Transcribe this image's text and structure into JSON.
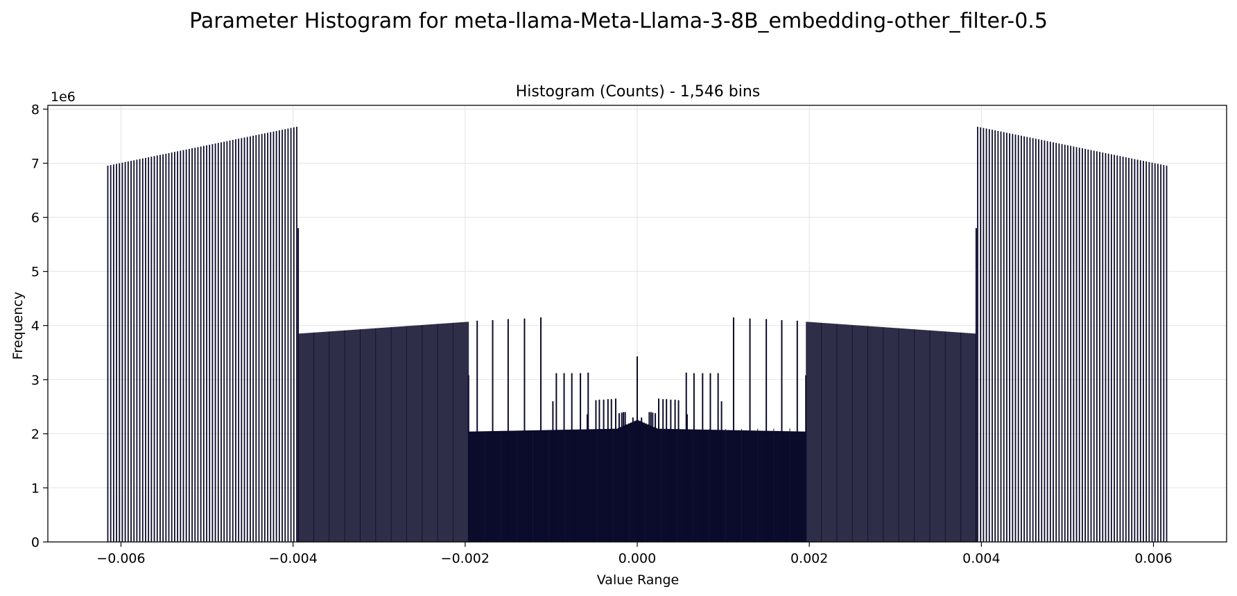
{
  "figure": {
    "title": "Parameter Histogram for meta-llama-Meta-Llama-3-8B_embedding-other_filter-0.5"
  },
  "chart_data": {
    "type": "bar",
    "title": "Histogram (Counts) - 1,546 bins",
    "xlabel": "Value Range",
    "ylabel": "Frequency",
    "y_offset_label": "1e6",
    "xlim": [
      -0.00685,
      0.00685
    ],
    "ylim": [
      0,
      8.07
    ],
    "y_unit_multiplier": 1000000,
    "grid": true,
    "bar_color": "#0b0b2b",
    "x_ticks": [
      -0.006,
      -0.004,
      -0.002,
      0.0,
      0.002,
      0.004,
      0.006
    ],
    "x_tick_labels": [
      "−0.006",
      "−0.004",
      "−0.002",
      "0.000",
      "0.002",
      "0.004",
      "0.006"
    ],
    "y_ticks": [
      0,
      1,
      2,
      3,
      4,
      5,
      6,
      7,
      8
    ],
    "y_tick_labels": [
      "0",
      "1",
      "2",
      "3",
      "4",
      "5",
      "6",
      "7",
      "8"
    ],
    "regions": [
      {
        "name": "outer-left",
        "x_range": [
          -0.00617,
          -0.00394
        ],
        "shape": "sparse spikes rising",
        "y_start": 6.95,
        "y_end": 7.68
      },
      {
        "name": "mid-left",
        "x_range": [
          -0.00394,
          -0.00196
        ],
        "shape": "dense rising",
        "y_start": 3.85,
        "y_end": 4.07
      },
      {
        "name": "inner",
        "x_range": [
          -0.00196,
          0.00196
        ],
        "shape": "dense near-flat",
        "y_start": 2.04,
        "y_end": 2.1
      },
      {
        "name": "mid-right",
        "x_range": [
          0.00196,
          0.00394
        ],
        "shape": "dense falling",
        "y_start": 4.07,
        "y_end": 3.85
      },
      {
        "name": "outer-right",
        "x_range": [
          0.00394,
          0.00617
        ],
        "shape": "sparse spikes falling",
        "y_start": 7.68,
        "y_end": 6.95
      }
    ],
    "spikes": [
      {
        "x": -0.00394,
        "y": 5.8
      },
      {
        "x": 0.00394,
        "y": 5.8
      },
      {
        "x": -0.00196,
        "y": 3.08
      },
      {
        "x": 0.00196,
        "y": 3.08
      },
      {
        "x": -0.00186,
        "y": 4.09
      },
      {
        "x": -0.00168,
        "y": 4.1
      },
      {
        "x": -0.0015,
        "y": 4.12
      },
      {
        "x": -0.00131,
        "y": 4.13
      },
      {
        "x": -0.00112,
        "y": 4.15
      },
      {
        "x": 0.00112,
        "y": 4.15
      },
      {
        "x": 0.00131,
        "y": 4.13
      },
      {
        "x": 0.0015,
        "y": 4.12
      },
      {
        "x": 0.00168,
        "y": 4.1
      },
      {
        "x": 0.00186,
        "y": 4.09
      },
      {
        "x": -0.00098,
        "y": 2.6
      },
      {
        "x": -0.00094,
        "y": 3.12
      },
      {
        "x": -0.00085,
        "y": 3.12
      },
      {
        "x": -0.00076,
        "y": 3.12
      },
      {
        "x": -0.00066,
        "y": 3.12
      },
      {
        "x": -0.00057,
        "y": 3.13
      },
      {
        "x": 0.00057,
        "y": 3.13
      },
      {
        "x": 0.00066,
        "y": 3.12
      },
      {
        "x": 0.00076,
        "y": 3.12
      },
      {
        "x": 0.00085,
        "y": 3.12
      },
      {
        "x": 0.00094,
        "y": 3.12
      },
      {
        "x": 0.00098,
        "y": 2.6
      },
      {
        "x": -0.00048,
        "y": 2.62
      },
      {
        "x": -0.00044,
        "y": 2.63
      },
      {
        "x": -0.00039,
        "y": 2.63
      },
      {
        "x": -0.00034,
        "y": 2.64
      },
      {
        "x": -0.0003,
        "y": 2.64
      },
      {
        "x": -0.00025,
        "y": 2.65
      },
      {
        "x": 0.00025,
        "y": 2.65
      },
      {
        "x": 0.0003,
        "y": 2.64
      },
      {
        "x": 0.00034,
        "y": 2.64
      },
      {
        "x": 0.00039,
        "y": 2.63
      },
      {
        "x": 0.00044,
        "y": 2.63
      },
      {
        "x": 0.00048,
        "y": 2.62
      },
      {
        "x": -0.00021,
        "y": 2.38
      },
      {
        "x": -0.00018,
        "y": 2.39
      },
      {
        "x": -0.00016,
        "y": 2.4
      },
      {
        "x": -0.00014,
        "y": 2.4
      },
      {
        "x": 0.00014,
        "y": 2.4
      },
      {
        "x": 0.00016,
        "y": 2.4
      },
      {
        "x": 0.00018,
        "y": 2.39
      },
      {
        "x": 0.00021,
        "y": 2.38
      },
      {
        "x": -5e-05,
        "y": 2.3
      },
      {
        "x": 5e-05,
        "y": 2.3
      },
      {
        "x": 0.0,
        "y": 3.43
      },
      {
        "x": -0.00058,
        "y": 2.36
      },
      {
        "x": 0.00058,
        "y": 2.36
      }
    ]
  }
}
